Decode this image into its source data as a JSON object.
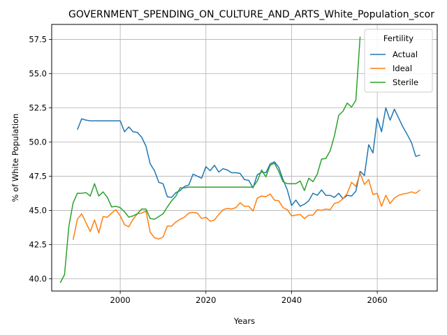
{
  "chart_data": {
    "type": "line",
    "title": "GOVERNMENT_SPENDING_ON_CULTURE_AND_ARTS_White_Population_scor",
    "xlabel": "Years",
    "ylabel": "% of White Population",
    "xlim": [
      1984,
      2074
    ],
    "ylim": [
      39.1,
      58.6
    ],
    "x_ticks": [
      2000,
      2020,
      2040,
      2060
    ],
    "y_ticks": [
      40.0,
      42.5,
      45.0,
      47.5,
      50.0,
      52.5,
      55.0,
      57.5
    ],
    "grid": true,
    "legend": {
      "title": "Fertility",
      "placement": "top-right"
    },
    "series": [
      {
        "name": "Actual",
        "color": "#1f77b4",
        "points": [
          [
            1990,
            50.9
          ],
          [
            1991,
            51.7
          ],
          [
            1992,
            51.6
          ],
          [
            1993,
            51.55
          ],
          [
            1994,
            51.55
          ],
          [
            1995,
            51.55
          ],
          [
            1996,
            51.55
          ],
          [
            1997,
            51.55
          ],
          [
            1998,
            51.55
          ],
          [
            1999,
            51.55
          ],
          [
            2000,
            51.55
          ],
          [
            2001,
            50.75
          ],
          [
            2002,
            51.1
          ],
          [
            2003,
            50.75
          ],
          [
            2004,
            50.7
          ],
          [
            2005,
            50.35
          ],
          [
            2006,
            49.7
          ],
          [
            2007,
            48.4
          ],
          [
            2008,
            47.9
          ],
          [
            2009,
            47.05
          ],
          [
            2010,
            46.95
          ],
          [
            2011,
            46.0
          ],
          [
            2012,
            45.95
          ],
          [
            2013,
            46.3
          ],
          [
            2014,
            46.45
          ],
          [
            2015,
            46.75
          ],
          [
            2016,
            46.85
          ],
          [
            2017,
            47.65
          ],
          [
            2018,
            47.5
          ],
          [
            2019,
            47.35
          ],
          [
            2020,
            48.2
          ],
          [
            2021,
            47.9
          ],
          [
            2022,
            48.3
          ],
          [
            2023,
            47.8
          ],
          [
            2024,
            48.05
          ],
          [
            2025,
            47.95
          ],
          [
            2026,
            47.75
          ],
          [
            2027,
            47.75
          ],
          [
            2028,
            47.7
          ],
          [
            2029,
            47.25
          ],
          [
            2030,
            47.2
          ],
          [
            2031,
            46.65
          ],
          [
            2032,
            47.6
          ],
          [
            2033,
            47.8
          ],
          [
            2034,
            47.75
          ],
          [
            2035,
            48.4
          ],
          [
            2036,
            48.55
          ],
          [
            2037,
            48.15
          ],
          [
            2038,
            47.25
          ],
          [
            2039,
            46.5
          ],
          [
            2040,
            45.35
          ],
          [
            2041,
            45.75
          ],
          [
            2042,
            45.3
          ],
          [
            2043,
            45.45
          ],
          [
            2044,
            45.7
          ],
          [
            2045,
            46.25
          ],
          [
            2046,
            46.1
          ],
          [
            2047,
            46.5
          ],
          [
            2048,
            46.1
          ],
          [
            2049,
            46.1
          ],
          [
            2050,
            45.95
          ],
          [
            2051,
            46.25
          ],
          [
            2052,
            45.85
          ],
          [
            2053,
            46.1
          ],
          [
            2054,
            46.05
          ],
          [
            2055,
            46.4
          ],
          [
            2056,
            47.85
          ],
          [
            2057,
            47.55
          ],
          [
            2058,
            49.8
          ],
          [
            2059,
            49.2
          ],
          [
            2060,
            51.75
          ],
          [
            2061,
            50.75
          ],
          [
            2062,
            52.5
          ],
          [
            2063,
            51.6
          ],
          [
            2064,
            52.4
          ],
          [
            2065,
            51.75
          ],
          [
            2066,
            51.1
          ],
          [
            2067,
            50.55
          ],
          [
            2068,
            49.95
          ],
          [
            2069,
            48.95
          ],
          [
            2070,
            49.05
          ]
        ]
      },
      {
        "name": "Ideal",
        "color": "#ff7f0e",
        "points": [
          [
            1989,
            42.85
          ],
          [
            1990,
            44.35
          ],
          [
            1991,
            44.75
          ],
          [
            1992,
            44.1
          ],
          [
            1993,
            43.45
          ],
          [
            1994,
            44.3
          ],
          [
            1995,
            43.35
          ],
          [
            1996,
            44.55
          ],
          [
            1997,
            44.5
          ],
          [
            1998,
            44.8
          ],
          [
            1999,
            45.05
          ],
          [
            2000,
            44.6
          ],
          [
            2001,
            43.95
          ],
          [
            2002,
            43.8
          ],
          [
            2003,
            44.35
          ],
          [
            2004,
            44.75
          ],
          [
            2005,
            44.8
          ],
          [
            2006,
            44.95
          ],
          [
            2007,
            43.4
          ],
          [
            2008,
            43.0
          ],
          [
            2009,
            42.9
          ],
          [
            2010,
            43.05
          ],
          [
            2011,
            43.85
          ],
          [
            2012,
            43.85
          ],
          [
            2013,
            44.15
          ],
          [
            2014,
            44.35
          ],
          [
            2015,
            44.5
          ],
          [
            2016,
            44.8
          ],
          [
            2017,
            44.85
          ],
          [
            2018,
            44.8
          ],
          [
            2019,
            44.4
          ],
          [
            2020,
            44.5
          ],
          [
            2021,
            44.2
          ],
          [
            2022,
            44.3
          ],
          [
            2023,
            44.7
          ],
          [
            2024,
            45.05
          ],
          [
            2025,
            45.15
          ],
          [
            2026,
            45.1
          ],
          [
            2027,
            45.2
          ],
          [
            2028,
            45.55
          ],
          [
            2029,
            45.3
          ],
          [
            2030,
            45.3
          ],
          [
            2031,
            44.95
          ],
          [
            2032,
            45.9
          ],
          [
            2033,
            46.05
          ],
          [
            2034,
            46.0
          ],
          [
            2035,
            46.2
          ],
          [
            2036,
            45.75
          ],
          [
            2037,
            45.7
          ],
          [
            2038,
            45.2
          ],
          [
            2039,
            45.05
          ],
          [
            2040,
            44.6
          ],
          [
            2041,
            44.65
          ],
          [
            2042,
            44.7
          ],
          [
            2043,
            44.4
          ],
          [
            2044,
            44.65
          ],
          [
            2045,
            44.65
          ],
          [
            2046,
            45.05
          ],
          [
            2047,
            45.0
          ],
          [
            2048,
            45.1
          ],
          [
            2049,
            45.05
          ],
          [
            2050,
            45.5
          ],
          [
            2051,
            45.6
          ],
          [
            2052,
            45.85
          ],
          [
            2053,
            46.25
          ],
          [
            2054,
            47.05
          ],
          [
            2055,
            46.75
          ],
          [
            2056,
            47.7
          ],
          [
            2057,
            46.9
          ],
          [
            2058,
            47.25
          ],
          [
            2059,
            46.15
          ],
          [
            2060,
            46.25
          ],
          [
            2061,
            45.3
          ],
          [
            2062,
            46.1
          ],
          [
            2063,
            45.5
          ],
          [
            2064,
            45.9
          ],
          [
            2065,
            46.1
          ],
          [
            2066,
            46.2
          ],
          [
            2067,
            46.25
          ],
          [
            2068,
            46.35
          ],
          [
            2069,
            46.25
          ],
          [
            2070,
            46.5
          ]
        ]
      },
      {
        "name": "Sterile",
        "color": "#2ca02c",
        "points": [
          [
            1986,
            39.7
          ],
          [
            1987,
            40.3
          ],
          [
            1988,
            43.8
          ],
          [
            1989,
            45.55
          ],
          [
            1990,
            46.25
          ],
          [
            1991,
            46.25
          ],
          [
            1992,
            46.3
          ],
          [
            1993,
            46.05
          ],
          [
            1994,
            46.95
          ],
          [
            1995,
            46.05
          ],
          [
            1996,
            46.35
          ],
          [
            1997,
            45.95
          ],
          [
            1998,
            45.25
          ],
          [
            1999,
            45.3
          ],
          [
            2000,
            45.2
          ],
          [
            2001,
            44.9
          ],
          [
            2002,
            44.5
          ],
          [
            2003,
            44.6
          ],
          [
            2004,
            44.75
          ],
          [
            2005,
            45.1
          ],
          [
            2006,
            45.1
          ],
          [
            2007,
            44.4
          ],
          [
            2008,
            44.35
          ],
          [
            2009,
            44.55
          ],
          [
            2010,
            44.75
          ],
          [
            2011,
            45.25
          ],
          [
            2012,
            45.7
          ],
          [
            2013,
            46.05
          ],
          [
            2014,
            46.65
          ],
          [
            2015,
            46.65
          ],
          [
            2016,
            46.7
          ],
          [
            2017,
            46.7
          ],
          [
            2018,
            46.7
          ],
          [
            2019,
            46.7
          ],
          [
            2020,
            46.7
          ],
          [
            2021,
            46.7
          ],
          [
            2022,
            46.7
          ],
          [
            2023,
            46.7
          ],
          [
            2024,
            46.7
          ],
          [
            2025,
            46.7
          ],
          [
            2026,
            46.7
          ],
          [
            2027,
            46.7
          ],
          [
            2028,
            46.7
          ],
          [
            2029,
            46.7
          ],
          [
            2030,
            46.7
          ],
          [
            2031,
            46.7
          ],
          [
            2032,
            47.15
          ],
          [
            2033,
            47.95
          ],
          [
            2034,
            47.45
          ],
          [
            2035,
            48.3
          ],
          [
            2036,
            48.45
          ],
          [
            2037,
            47.85
          ],
          [
            2038,
            47.1
          ],
          [
            2039,
            46.95
          ],
          [
            2040,
            46.95
          ],
          [
            2041,
            46.95
          ],
          [
            2042,
            47.15
          ],
          [
            2043,
            46.45
          ],
          [
            2044,
            47.35
          ],
          [
            2045,
            47.1
          ],
          [
            2046,
            47.65
          ],
          [
            2047,
            48.75
          ],
          [
            2048,
            48.8
          ],
          [
            2049,
            49.35
          ],
          [
            2050,
            50.45
          ],
          [
            2051,
            51.95
          ],
          [
            2052,
            52.25
          ],
          [
            2053,
            52.85
          ],
          [
            2054,
            52.55
          ],
          [
            2055,
            53.05
          ],
          [
            2056,
            57.7
          ]
        ]
      }
    ]
  }
}
